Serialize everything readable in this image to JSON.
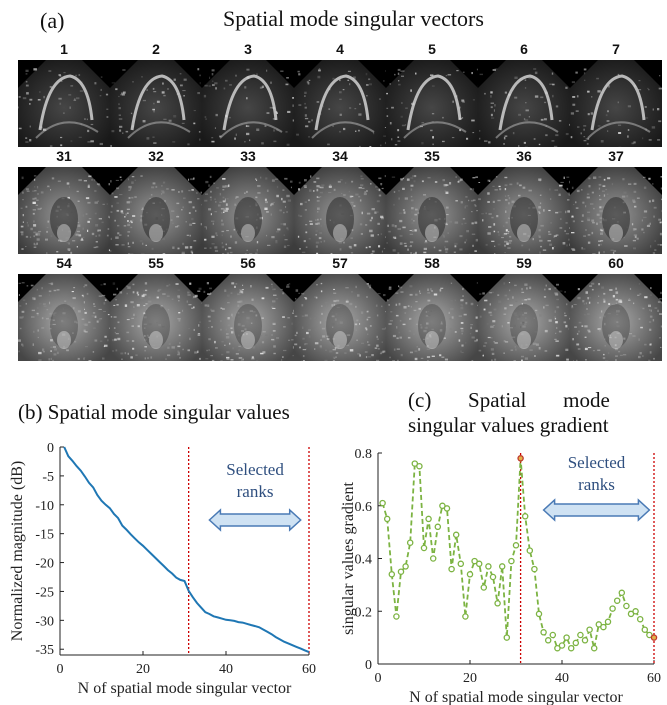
{
  "panel_a": {
    "label": "(a)",
    "title": "Spatial mode singular vectors",
    "rows": [
      {
        "style": "sparse",
        "frames": [
          "1",
          "2",
          "3",
          "4",
          "5",
          "6",
          "7"
        ]
      },
      {
        "style": "noisy",
        "frames": [
          "31",
          "32",
          "33",
          "34",
          "35",
          "36",
          "37"
        ]
      },
      {
        "style": "blurry",
        "frames": [
          "54",
          "55",
          "56",
          "57",
          "58",
          "59",
          "60"
        ]
      }
    ]
  },
  "colors": {
    "line_b": "#1f77b4",
    "line_c": "#7cb342",
    "marker_edge": "#7cb342",
    "cutoff": "#cc0000",
    "arrow_fill": "#cfe2f3",
    "arrow_stroke": "#4a7ab5",
    "annotation": "#2f4f7f"
  },
  "chart_data": [
    {
      "type": "line",
      "title": "(b) Spatial mode singular values",
      "xlabel": "N of spatial mode singular vector",
      "ylabel": "Normalized magnitude (dB)",
      "xlim": [
        0,
        60
      ],
      "ylim": [
        -36,
        0
      ],
      "xticks": [
        "0",
        "20",
        "40",
        "60"
      ],
      "yticks": [
        "0",
        "-5",
        "-10",
        "-15",
        "-20",
        "-25",
        "-30",
        "-35"
      ],
      "grid": false,
      "series": [
        {
          "x": [
            1,
            2,
            3,
            4,
            5,
            6,
            7,
            8,
            9,
            10,
            11,
            12,
            13,
            14,
            15,
            16,
            17,
            18,
            19,
            20,
            21,
            22,
            23,
            24,
            25,
            26,
            27,
            28,
            29,
            30,
            31,
            32,
            33,
            34,
            35,
            36,
            37,
            38,
            39,
            40,
            41,
            42,
            43,
            44,
            45,
            46,
            47,
            48,
            49,
            50,
            51,
            52,
            53,
            54,
            55,
            56,
            57,
            58,
            59,
            60
          ],
          "y": [
            0,
            -1.6,
            -2.4,
            -3.3,
            -4.1,
            -5.1,
            -6.2,
            -7.0,
            -8.3,
            -9.3,
            -10.0,
            -10.6,
            -11.6,
            -12.3,
            -13.6,
            -14.3,
            -15.1,
            -15.8,
            -16.5,
            -17.1,
            -17.8,
            -18.5,
            -19.2,
            -19.9,
            -20.6,
            -21.3,
            -21.9,
            -22.6,
            -23.0,
            -23.2,
            -24.9,
            -26.0,
            -27.0,
            -27.8,
            -28.6,
            -28.9,
            -29.3,
            -29.5,
            -29.7,
            -29.9,
            -30.0,
            -30.1,
            -30.3,
            -30.4,
            -30.6,
            -30.8,
            -31.0,
            -31.2,
            -31.6,
            -32.0,
            -32.4,
            -32.9,
            -33.3,
            -33.7,
            -34.0,
            -34.3,
            -34.6,
            -34.9,
            -35.2,
            -35.5
          ]
        }
      ],
      "cutoffs": [
        31,
        60
      ],
      "annotation": {
        "lines": [
          "Selected",
          "ranks"
        ],
        "arrow_from": 36,
        "arrow_to": 58
      }
    },
    {
      "type": "line",
      "title_lines": [
        "(c)       Spatial       mode",
        "singular values gradient"
      ],
      "xlabel": "N of spatial mode singular vector",
      "ylabel": "singular values gradient",
      "xlim": [
        0,
        60
      ],
      "ylim": [
        0,
        0.8
      ],
      "xticks": [
        "0",
        "20",
        "40",
        "60"
      ],
      "yticks": [
        "0",
        "0.2",
        "0.4",
        "0.6",
        "0.8"
      ],
      "grid": false,
      "series": [
        {
          "x": [
            1,
            2,
            3,
            4,
            5,
            6,
            7,
            8,
            9,
            10,
            11,
            12,
            13,
            14,
            15,
            16,
            17,
            18,
            19,
            20,
            21,
            22,
            23,
            24,
            25,
            26,
            27,
            28,
            29,
            30,
            31,
            32,
            33,
            34,
            35,
            36,
            37,
            38,
            39,
            40,
            41,
            42,
            43,
            44,
            45,
            46,
            47,
            48,
            49,
            50,
            51,
            52,
            53,
            54,
            55,
            56,
            57,
            58,
            59,
            60
          ],
          "y": [
            0.61,
            0.55,
            0.34,
            0.18,
            0.35,
            0.37,
            0.46,
            0.76,
            0.75,
            0.44,
            0.55,
            0.4,
            0.52,
            0.6,
            0.59,
            0.36,
            0.49,
            0.38,
            0.18,
            0.34,
            0.39,
            0.38,
            0.29,
            0.37,
            0.33,
            0.23,
            0.37,
            0.1,
            0.39,
            0.45,
            0.78,
            0.56,
            0.43,
            0.36,
            0.19,
            0.12,
            0.09,
            0.11,
            0.06,
            0.07,
            0.1,
            0.06,
            0.08,
            0.11,
            0.09,
            0.13,
            0.06,
            0.15,
            0.14,
            0.16,
            0.21,
            0.24,
            0.27,
            0.22,
            0.19,
            0.2,
            0.17,
            0.13,
            0.11,
            0.1
          ]
        }
      ],
      "cutoffs": [
        31,
        60
      ],
      "annotation": {
        "lines": [
          "Selected",
          "ranks"
        ],
        "arrow_from": 36,
        "arrow_to": 59
      }
    }
  ]
}
